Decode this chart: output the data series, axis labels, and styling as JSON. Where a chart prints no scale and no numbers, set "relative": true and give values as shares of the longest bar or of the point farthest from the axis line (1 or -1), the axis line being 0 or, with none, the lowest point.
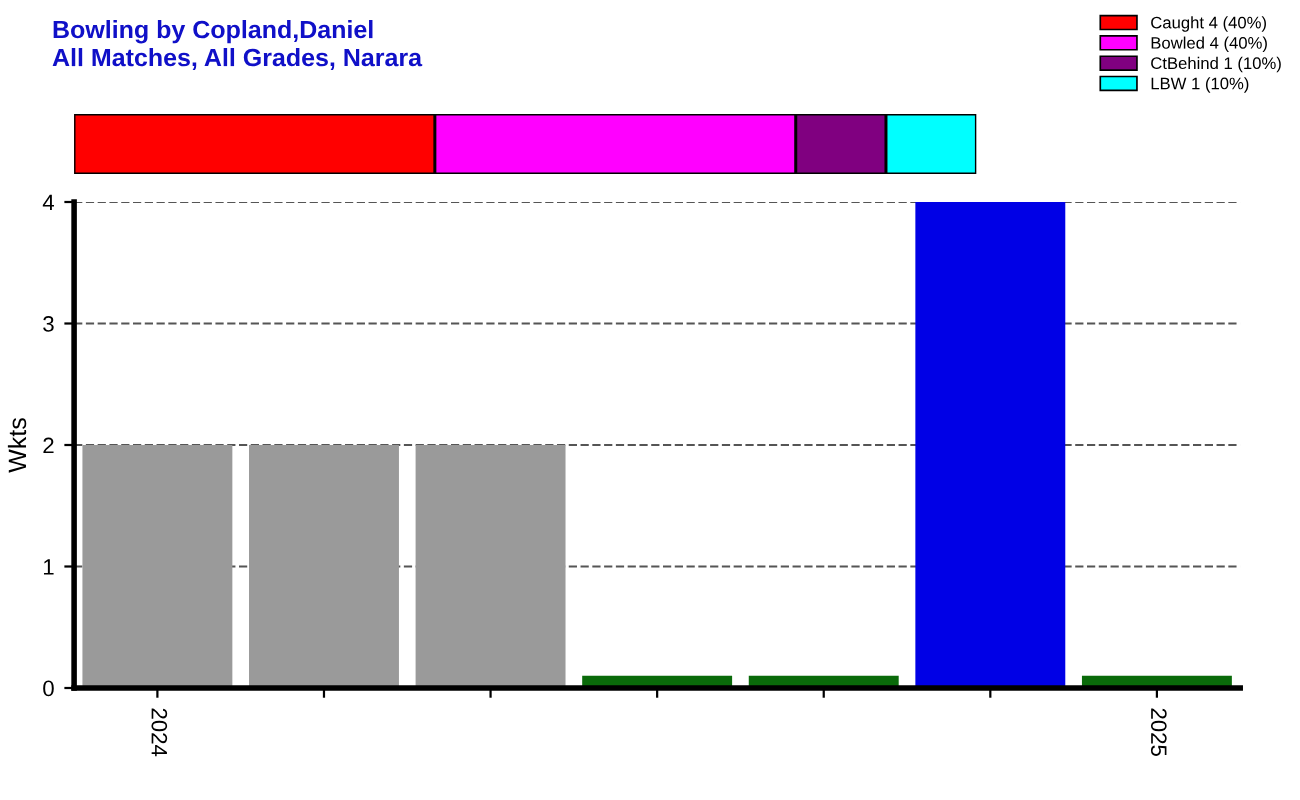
{
  "chart_data": [
    {
      "type": "bar",
      "title": "Bowling by Copland,Daniel",
      "subtitle": "All Matches, All Grades, Narara",
      "orientation": "horizontal",
      "stacked": true,
      "relative": true,
      "categories": [
        null
      ],
      "legend": "top right",
      "series": [
        {
          "name": "Caught 4 (40%)",
          "color": "#ff0000",
          "values": [
            0.4
          ]
        },
        {
          "name": "Bowled 4 (40%)",
          "color": "#ff00ff",
          "values": [
            0.4
          ]
        },
        {
          "name": "CtBehind 1 (10%)",
          "color": "#800080",
          "values": [
            0.1
          ]
        },
        {
          "name": "LBW 1 (10%)",
          "color": "#00ffff",
          "values": [
            0.1
          ]
        }
      ]
    },
    {
      "type": "bar",
      "ylabel": "Wkts",
      "categories": [
        "2024",
        null,
        null,
        null,
        null,
        null,
        "2025"
      ],
      "values": [
        2,
        2,
        2,
        0.1,
        0.1,
        4,
        0.1
      ],
      "colors": [
        "#9a9a9a",
        "#9a9a9a",
        "#9a9a9a",
        "#0a6a0a",
        "#0a6a0a",
        "#0000e6",
        "#0a6a0a"
      ],
      "ylim": [
        0,
        4
      ],
      "yticks": [
        0,
        1,
        2,
        3,
        4
      ],
      "grid": "y"
    }
  ]
}
